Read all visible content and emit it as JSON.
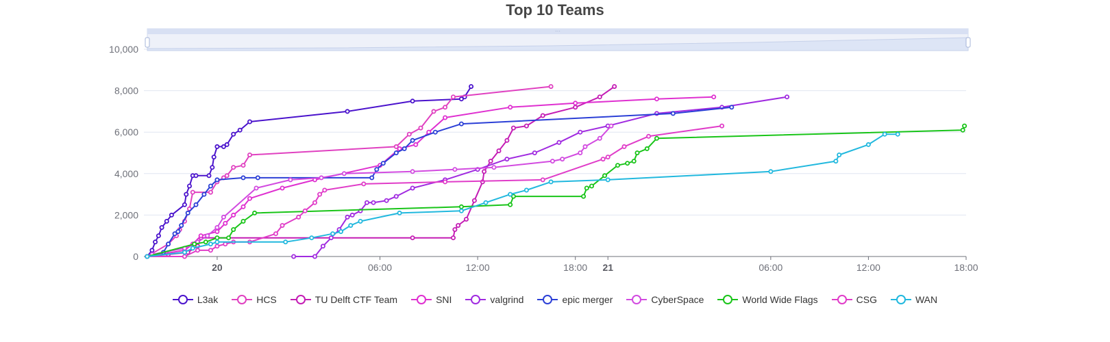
{
  "chart_data": {
    "type": "line",
    "title": "Top 10 Teams",
    "y_ticks": [
      "0",
      "2,000",
      "4,000",
      "6,000",
      "8,000",
      "10,000"
    ],
    "ylim": [
      0,
      10000
    ],
    "x_ticks": [
      {
        "label": "20",
        "bold": true,
        "t": 0
      },
      {
        "label": "06:00",
        "bold": false,
        "t": 10
      },
      {
        "label": "12:00",
        "bold": false,
        "t": 16
      },
      {
        "label": "18:00",
        "bold": false,
        "t": 22
      },
      {
        "label": "21",
        "bold": true,
        "t": 24
      },
      {
        "label": "06:00",
        "bold": false,
        "t": 34
      },
      {
        "label": "12:00",
        "bold": false,
        "t": 40
      },
      {
        "label": "18:00",
        "bold": false,
        "t": 46
      }
    ],
    "x_unit": "hours since 20 00:00",
    "xlim": [
      -4.5,
      46
    ],
    "grid": true,
    "legend_position": "bottom",
    "datazoom_slider": true,
    "series": [
      {
        "name": "L3ak",
        "color": "#4a12cc",
        "points": [
          [
            -4.3,
            0
          ],
          [
            -4,
            300
          ],
          [
            -3.8,
            700
          ],
          [
            -3.6,
            1000
          ],
          [
            -3.4,
            1400
          ],
          [
            -3.1,
            1700
          ],
          [
            -2.8,
            2000
          ],
          [
            -2,
            2500
          ],
          [
            -1.9,
            3000
          ],
          [
            -1.7,
            3400
          ],
          [
            -1.5,
            3900
          ],
          [
            -1.3,
            3900
          ],
          [
            -0.5,
            3900
          ],
          [
            -0.3,
            4300
          ],
          [
            -0.2,
            4800
          ],
          [
            0,
            5300
          ],
          [
            0.4,
            5300
          ],
          [
            0.6,
            5400
          ],
          [
            1,
            5900
          ],
          [
            1.4,
            6100
          ],
          [
            2,
            6500
          ],
          [
            8,
            7000
          ],
          [
            12,
            7500
          ],
          [
            15,
            7600
          ],
          [
            15.2,
            7700
          ],
          [
            15.6,
            8200
          ]
        ]
      },
      {
        "name": "HCS",
        "color": "#e040c0",
        "points": [
          [
            -4.3,
            0
          ],
          [
            -3,
            600
          ],
          [
            -2.5,
            1000
          ],
          [
            -2.3,
            1300
          ],
          [
            -2,
            1700
          ],
          [
            -1.7,
            2300
          ],
          [
            -1.5,
            3100
          ],
          [
            -0.4,
            3100
          ],
          [
            0,
            3600
          ],
          [
            0.4,
            3800
          ],
          [
            0.6,
            3900
          ],
          [
            1,
            4300
          ],
          [
            1.6,
            4400
          ],
          [
            2,
            4900
          ],
          [
            11,
            5300
          ],
          [
            11.8,
            5900
          ],
          [
            12.5,
            6200
          ],
          [
            13.3,
            7000
          ],
          [
            14,
            7200
          ],
          [
            14.5,
            7700
          ],
          [
            20.5,
            8200
          ]
        ]
      },
      {
        "name": "TU Delft CTF Team",
        "color": "#c41cb4",
        "points": [
          [
            -4.3,
            0
          ],
          [
            -3,
            100
          ],
          [
            -1.8,
            200
          ],
          [
            -1.2,
            500
          ],
          [
            -1,
            900
          ],
          [
            12,
            900
          ],
          [
            14.5,
            900
          ],
          [
            14.6,
            1300
          ],
          [
            14.8,
            1500
          ],
          [
            15.3,
            1800
          ],
          [
            15.8,
            2700
          ],
          [
            16.3,
            3600
          ],
          [
            16.4,
            4100
          ],
          [
            16.8,
            4600
          ],
          [
            17.3,
            5100
          ],
          [
            17.8,
            5600
          ],
          [
            18.2,
            6200
          ],
          [
            19,
            6300
          ],
          [
            20,
            6800
          ],
          [
            22,
            7200
          ],
          [
            23.5,
            7700
          ],
          [
            24.4,
            8200
          ]
        ]
      },
      {
        "name": "SNI",
        "color": "#df2fd0",
        "points": [
          [
            -4.3,
            0
          ],
          [
            -2,
            300
          ],
          [
            -1.5,
            600
          ],
          [
            -1,
            1000
          ],
          [
            0,
            1200
          ],
          [
            0.5,
            1600
          ],
          [
            1,
            2000
          ],
          [
            1.6,
            2400
          ],
          [
            2,
            2800
          ],
          [
            4,
            3300
          ],
          [
            6,
            3700
          ],
          [
            10,
            4400
          ],
          [
            11.2,
            5200
          ],
          [
            12.2,
            5400
          ],
          [
            13,
            6000
          ],
          [
            14,
            6700
          ],
          [
            18,
            7200
          ],
          [
            22,
            7400
          ],
          [
            27,
            7600
          ],
          [
            30.5,
            7700
          ]
        ]
      },
      {
        "name": "valgrind",
        "color": "#a02ae0",
        "points": [
          [
            4.7,
            0
          ],
          [
            6,
            0
          ],
          [
            6.5,
            500
          ],
          [
            7,
            900
          ],
          [
            7.5,
            1300
          ],
          [
            8,
            1900
          ],
          [
            8.3,
            2000
          ],
          [
            8.8,
            2200
          ],
          [
            9.2,
            2600
          ],
          [
            9.6,
            2600
          ],
          [
            10.4,
            2700
          ],
          [
            11,
            2900
          ],
          [
            12,
            3300
          ],
          [
            14,
            3700
          ],
          [
            16,
            4200
          ],
          [
            17.8,
            4700
          ],
          [
            19.5,
            5000
          ],
          [
            21,
            5500
          ],
          [
            22.3,
            6000
          ],
          [
            24,
            6300
          ],
          [
            27,
            6900
          ],
          [
            31,
            7200
          ],
          [
            35,
            7700
          ]
        ]
      },
      {
        "name": "epic merger",
        "color": "#2b3fd6",
        "points": [
          [
            -4.3,
            0
          ],
          [
            -3.3,
            200
          ],
          [
            -3,
            600
          ],
          [
            -2.6,
            1100
          ],
          [
            -2.4,
            1200
          ],
          [
            -2.2,
            1500
          ],
          [
            -1.8,
            2100
          ],
          [
            -1.3,
            2500
          ],
          [
            -0.8,
            3000
          ],
          [
            -0.4,
            3400
          ],
          [
            0,
            3700
          ],
          [
            1.6,
            3800
          ],
          [
            2.5,
            3800
          ],
          [
            9.5,
            3800
          ],
          [
            9.8,
            4200
          ],
          [
            10.2,
            4500
          ],
          [
            11,
            5000
          ],
          [
            11.5,
            5200
          ],
          [
            12,
            5600
          ],
          [
            13.4,
            6000
          ],
          [
            15,
            6400
          ],
          [
            28,
            6900
          ],
          [
            31.6,
            7200
          ]
        ]
      },
      {
        "name": "CyberSpace",
        "color": "#d24ae0",
        "points": [
          [
            -4.3,
            0
          ],
          [
            -4,
            100
          ],
          [
            -2,
            400
          ],
          [
            -1.2,
            700
          ],
          [
            -0.6,
            1000
          ],
          [
            0,
            1400
          ],
          [
            0.4,
            1900
          ],
          [
            2.4,
            3300
          ],
          [
            4.5,
            3700
          ],
          [
            6.4,
            3800
          ],
          [
            7.8,
            4000
          ],
          [
            12,
            4100
          ],
          [
            14.6,
            4200
          ],
          [
            17,
            4300
          ],
          [
            20.6,
            4600
          ],
          [
            21.2,
            4700
          ],
          [
            22.3,
            5000
          ],
          [
            22.6,
            5300
          ],
          [
            23.5,
            5700
          ],
          [
            24.2,
            6300
          ]
        ]
      },
      {
        "name": "World Wide Flags",
        "color": "#18c418",
        "points": [
          [
            -4.3,
            0
          ],
          [
            -1.4,
            600
          ],
          [
            -0.7,
            700
          ],
          [
            0,
            900
          ],
          [
            0.7,
            900
          ],
          [
            1,
            1300
          ],
          [
            1.6,
            1700
          ],
          [
            2.3,
            2100
          ],
          [
            15,
            2400
          ],
          [
            18,
            2500
          ],
          [
            18.2,
            2900
          ],
          [
            22.5,
            2900
          ],
          [
            22.7,
            3300
          ],
          [
            23,
            3400
          ],
          [
            23.8,
            3900
          ],
          [
            24.6,
            4400
          ],
          [
            25.2,
            4500
          ],
          [
            25.6,
            4600
          ],
          [
            25.8,
            5000
          ],
          [
            26.4,
            5200
          ],
          [
            27,
            5700
          ],
          [
            45.8,
            6100
          ],
          [
            45.9,
            6300
          ]
        ]
      },
      {
        "name": "CSG",
        "color": "#e03cc8",
        "points": [
          [
            -4.3,
            0
          ],
          [
            -2,
            0
          ],
          [
            -1.2,
            300
          ],
          [
            -0.4,
            300
          ],
          [
            0,
            500
          ],
          [
            0.5,
            600
          ],
          [
            1,
            700
          ],
          [
            2,
            700
          ],
          [
            3.6,
            1100
          ],
          [
            4,
            1500
          ],
          [
            5,
            1900
          ],
          [
            5.4,
            2200
          ],
          [
            6,
            2600
          ],
          [
            6.3,
            3000
          ],
          [
            6.6,
            3200
          ],
          [
            9,
            3500
          ],
          [
            14,
            3600
          ],
          [
            20,
            3700
          ],
          [
            23.7,
            4700
          ],
          [
            24,
            4800
          ],
          [
            25,
            5300
          ],
          [
            26.5,
            5800
          ],
          [
            31,
            6300
          ]
        ]
      },
      {
        "name": "WAN",
        "color": "#21b8de",
        "points": [
          [
            -4.3,
            0
          ],
          [
            -2,
            200
          ],
          [
            -1.5,
            400
          ],
          [
            -0.4,
            600
          ],
          [
            0,
            700
          ],
          [
            4.2,
            700
          ],
          [
            5.8,
            900
          ],
          [
            7.1,
            1100
          ],
          [
            7.6,
            1200
          ],
          [
            8.2,
            1500
          ],
          [
            8.8,
            1700
          ],
          [
            11.2,
            2100
          ],
          [
            15,
            2200
          ],
          [
            16.5,
            2600
          ],
          [
            18,
            3000
          ],
          [
            19,
            3200
          ],
          [
            20.5,
            3600
          ],
          [
            24,
            3700
          ],
          [
            34,
            4100
          ],
          [
            38,
            4600
          ],
          [
            38.2,
            4900
          ],
          [
            40,
            5400
          ],
          [
            41,
            5900
          ],
          [
            41.8,
            5900
          ]
        ]
      }
    ]
  }
}
